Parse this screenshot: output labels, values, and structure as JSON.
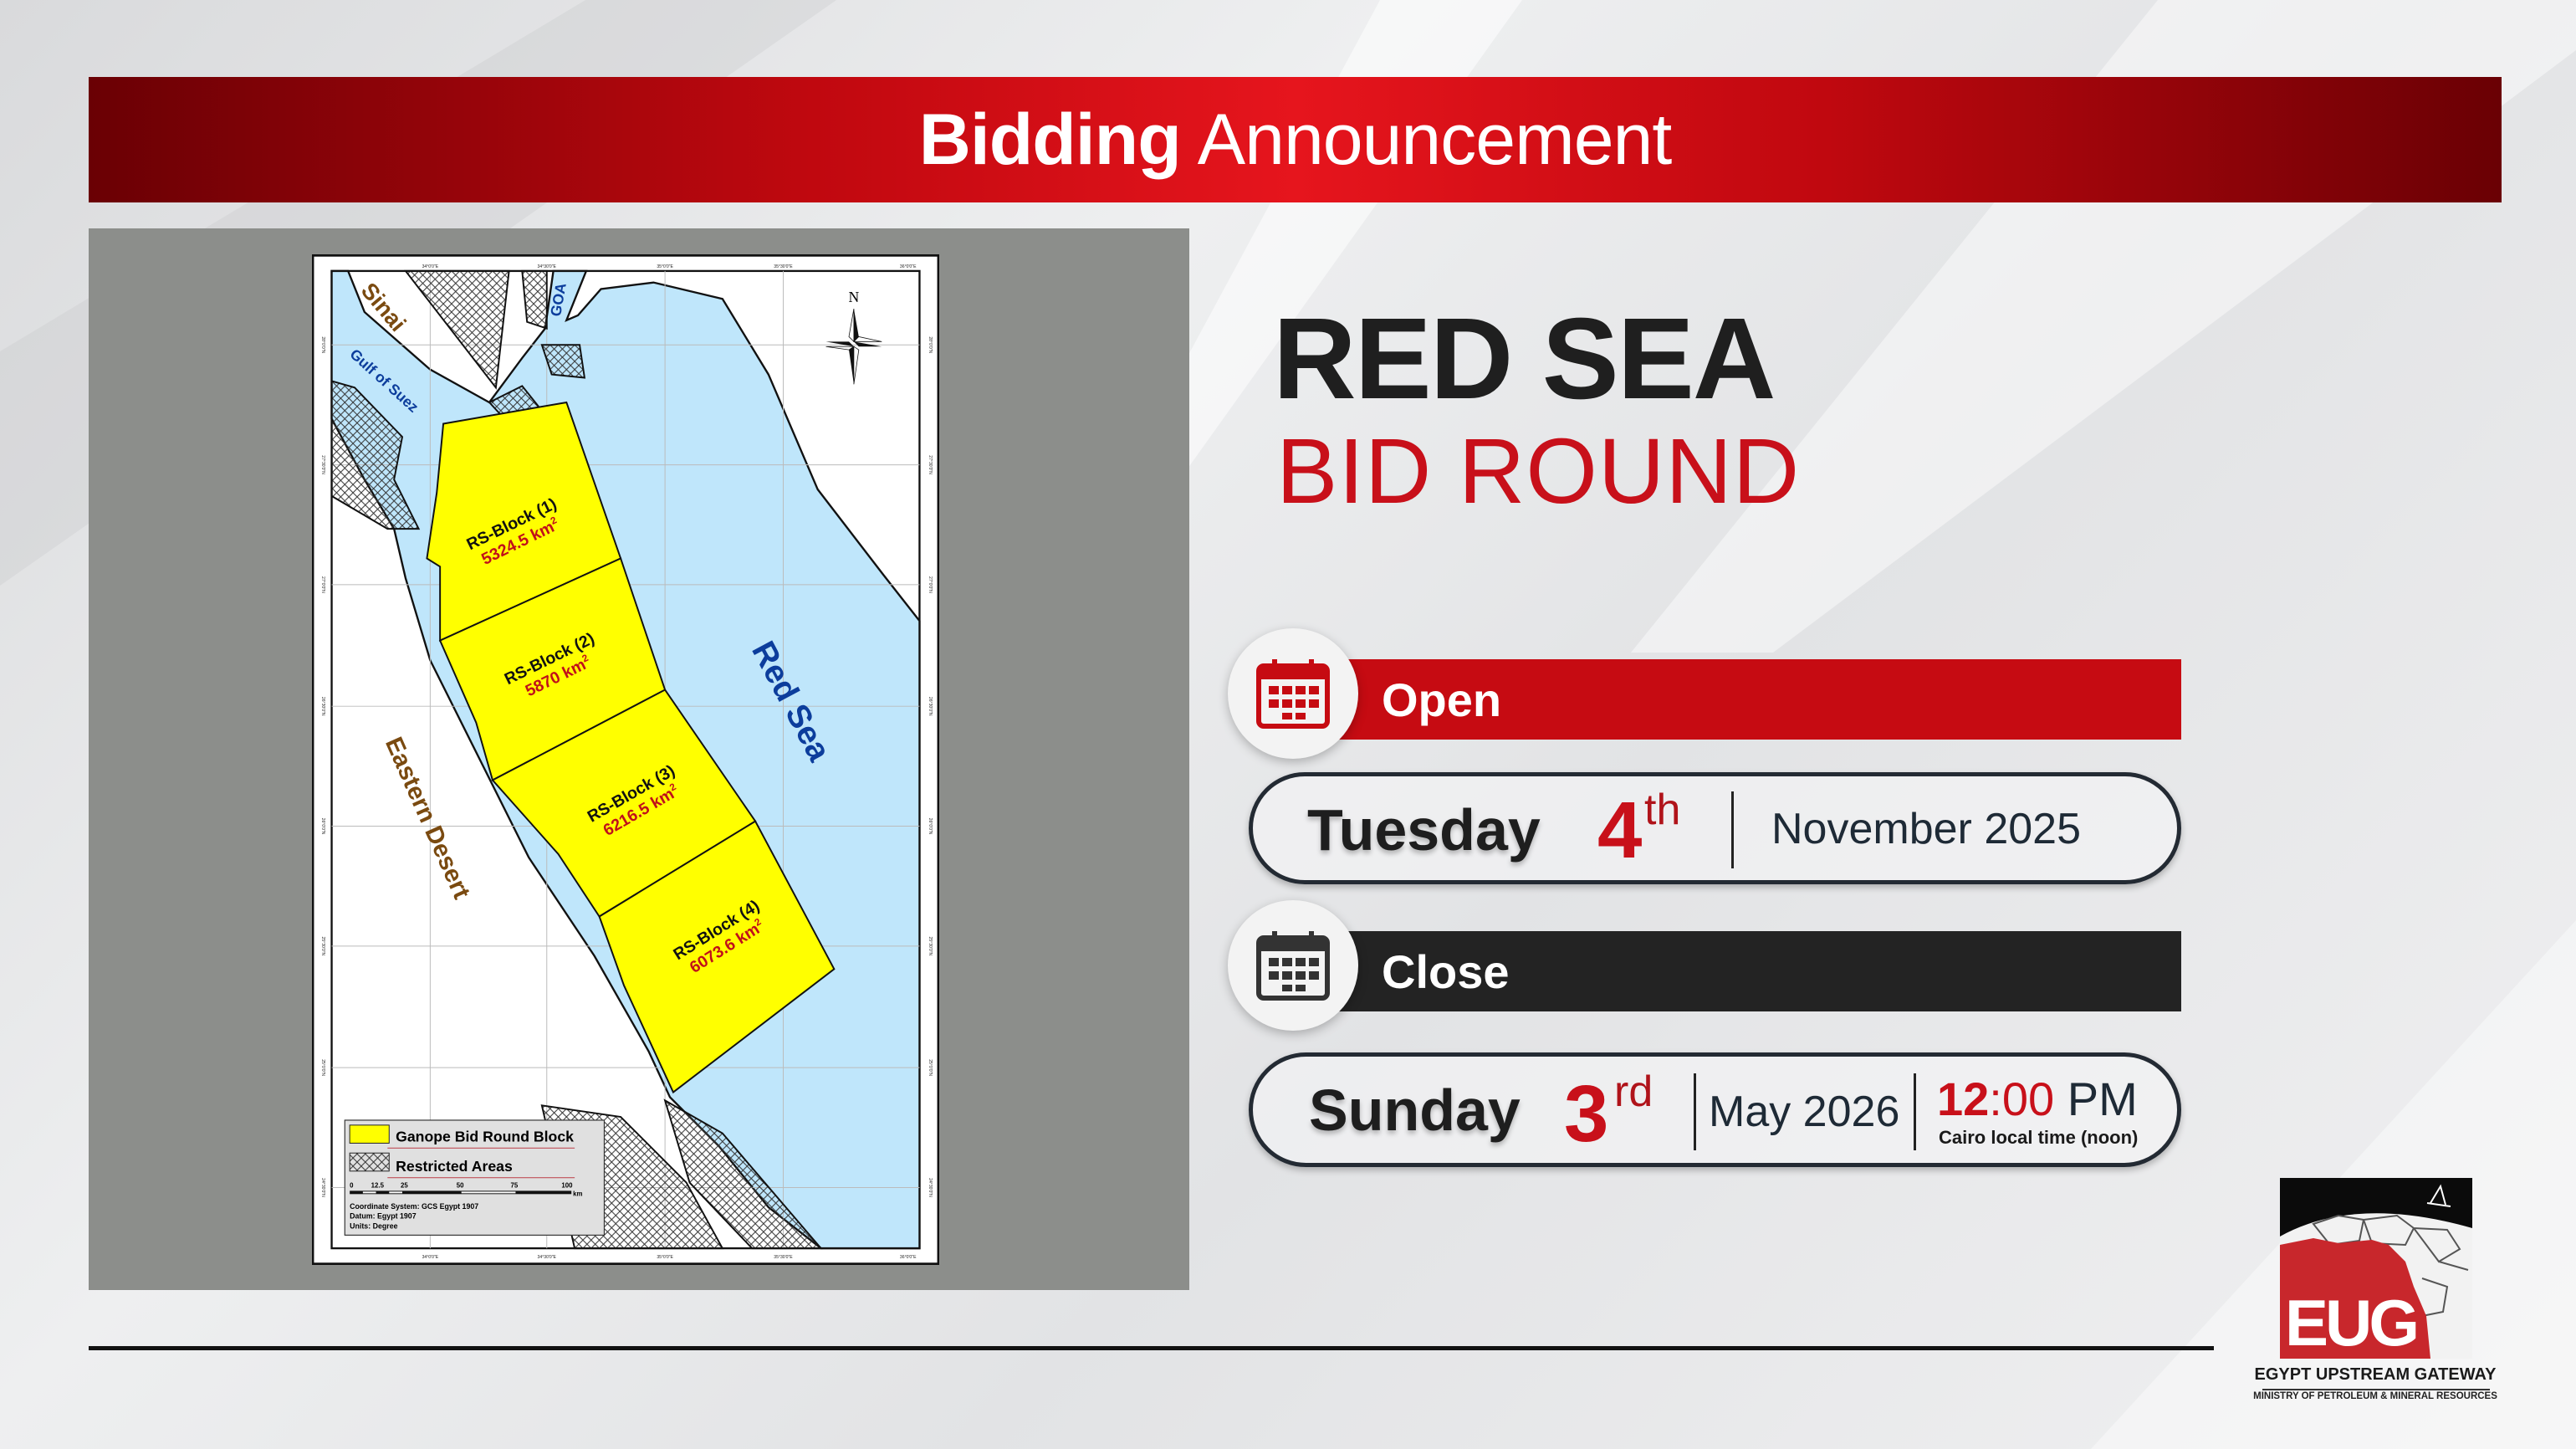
{
  "banner": {
    "title_bold": "Bidding",
    "title_regular": "Announcement",
    "color": "#c8101a"
  },
  "map": {
    "longitude_labels": [
      "34°0'0\"E",
      "34°30'0\"E",
      "35°0'0\"E",
      "35°30'0\"E",
      "36°0'0\"E"
    ],
    "latitude_labels": [
      "28°0'0\"N",
      "27°30'0\"N",
      "27°0'0\"N",
      "26°30'0\"N",
      "26°0'0\"N",
      "25°30'0\"N",
      "25°0'0\"N",
      "24°30'0\"N"
    ],
    "north_label": "N",
    "places": {
      "sinai": "Sinai",
      "gulf_of_suez": "Gulf of Suez",
      "goa": "GOA",
      "red_sea": "Red Sea",
      "eastern_desert": "Eastern Desert"
    },
    "blocks": [
      {
        "name": "RS-Block (1)",
        "area": "5324.5 km",
        "unit_sup": "2"
      },
      {
        "name": "RS-Block (2)",
        "area": "5870 km",
        "unit_sup": "2"
      },
      {
        "name": "RS-Block (3)",
        "area": "6216.5 km",
        "unit_sup": "2"
      },
      {
        "name": "RS-Block (4)",
        "area": "6073.6 km",
        "unit_sup": "2"
      }
    ],
    "legend": {
      "items": [
        "Ganope Bid Round Block",
        "Restricted Areas"
      ],
      "scale_ticks": [
        "0",
        "12.5",
        "25",
        "50",
        "75",
        "100"
      ],
      "scale_unit": "km",
      "coordinate_system": "Coordinate System: GCS Egypt 1907",
      "datum": "Datum: Egypt 1907",
      "units": "Units: Degree"
    },
    "colors": {
      "block": "#ffff00",
      "sea": "#bfe6fb",
      "land": "#ffffff"
    }
  },
  "headline": {
    "line1": "RED SEA",
    "line2": "BID ROUND"
  },
  "open": {
    "label": "Open",
    "icon": "calendar-icon",
    "day": "Tuesday",
    "date": "4",
    "suffix": "th",
    "month_year": "November 2025",
    "color": "#c60b12"
  },
  "close": {
    "label": "Close",
    "icon": "calendar-icon",
    "day": "Sunday",
    "date": "3",
    "suffix": "rd",
    "month_year": "May 2026",
    "time_hour": "12",
    "time_min": ":00",
    "ampm": " PM",
    "time_note": "Cairo local time (noon)",
    "color": "#232323"
  },
  "logo": {
    "mark": "EUG",
    "name": "EGYPT UPSTREAM GATEWAY",
    "ministry": "MINISTRY OF PETROLEUM & MINERAL RESOURCES"
  }
}
